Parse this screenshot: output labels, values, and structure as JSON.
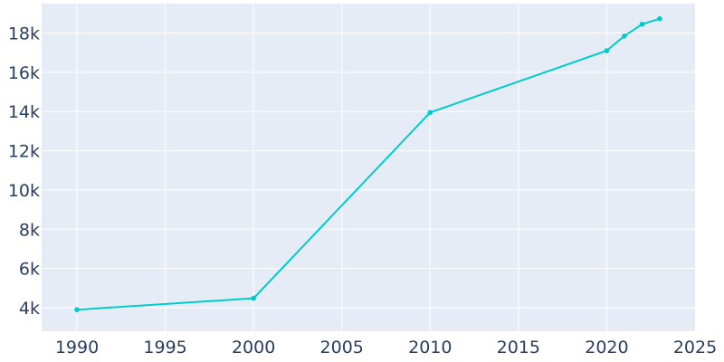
{
  "chart_data": {
    "type": "line",
    "title": "",
    "xlabel": "",
    "ylabel": "",
    "x": [
      1990,
      2000,
      2010,
      2020,
      2021,
      2022,
      2023
    ],
    "series": [
      {
        "values": [
          3900,
          4480,
          13950,
          17100,
          17850,
          18450,
          18730
        ]
      }
    ],
    "xlim": [
      1988,
      2025
    ],
    "ylim": [
      2800,
      19500
    ],
    "x_ticks": [
      1990,
      1995,
      2000,
      2005,
      2010,
      2015,
      2020,
      2025
    ],
    "x_tick_labels": [
      "1990",
      "1995",
      "2000",
      "2005",
      "2010",
      "2015",
      "2020",
      "2025"
    ],
    "y_ticks": [
      4000,
      6000,
      8000,
      10000,
      12000,
      14000,
      16000,
      18000
    ],
    "y_tick_labels": [
      "4k",
      "6k",
      "8k",
      "10k",
      "12k",
      "14k",
      "16k",
      "18k"
    ],
    "grid": true,
    "legend": false,
    "colors": {
      "line": "#00cccc",
      "plot_background": "#e5ecf6",
      "grid": "#ffffff",
      "tick_text": "#2a3f5f"
    }
  }
}
